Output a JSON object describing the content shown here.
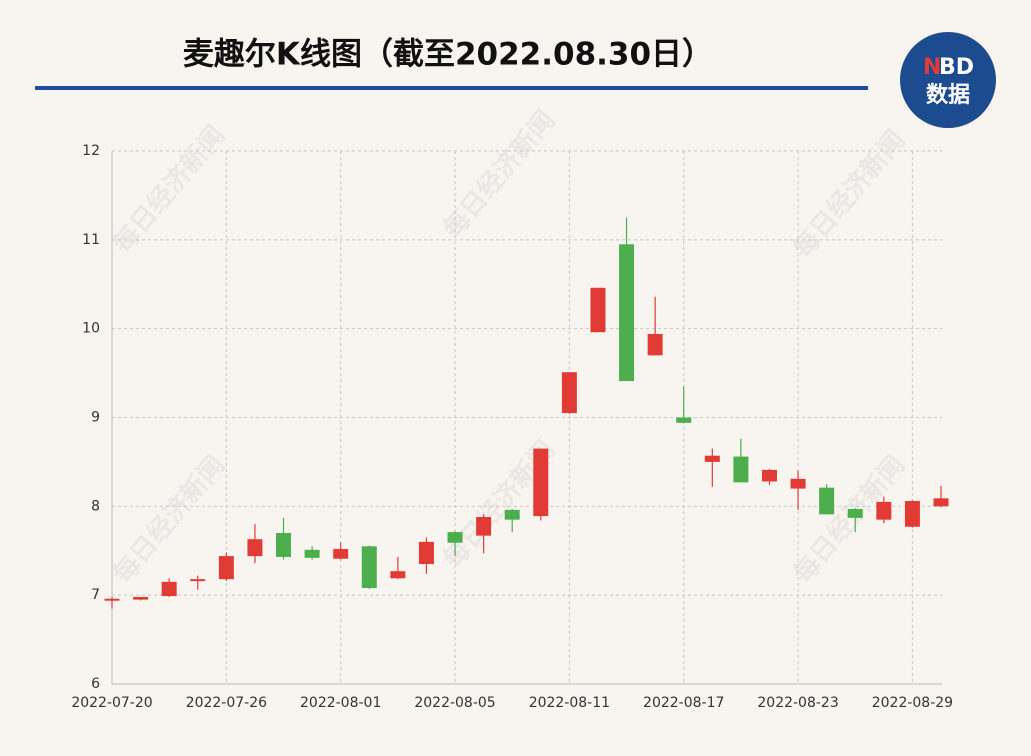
{
  "chart_data": {
    "type": "candlestick",
    "title": "麦趣尔K线图（截至2022.08.30日）",
    "logo": {
      "n": "N",
      "bd": "BD",
      "text": "数据"
    },
    "watermark": "每日经济新闻",
    "up_color": "#e03c35",
    "down_color": "#4cae4c",
    "grid": true,
    "categories": [
      "2022-07-20",
      null,
      null,
      null,
      "2022-07-26",
      null,
      null,
      null,
      "2022-08-01",
      null,
      null,
      null,
      "2022-08-05",
      null,
      null,
      null,
      "2022-08-11",
      null,
      null,
      null,
      "2022-08-17",
      null,
      null,
      null,
      "2022-08-23",
      null,
      null,
      null,
      "2022-08-29",
      null
    ],
    "open": [
      6.94,
      6.95,
      6.99,
      7.16,
      7.18,
      7.44,
      7.7,
      7.51,
      7.41,
      7.55,
      7.19,
      7.35,
      7.71,
      7.67,
      7.96,
      7.89,
      9.05,
      9.96,
      10.95,
      9.7,
      9.0,
      8.5,
      8.56,
      8.28,
      8.2,
      8.21,
      7.97,
      7.85,
      7.77,
      8.0
    ],
    "high": [
      6.98,
      6.98,
      7.19,
      7.22,
      7.48,
      7.8,
      7.87,
      7.55,
      7.59,
      7.56,
      7.43,
      7.65,
      7.72,
      7.91,
      7.97,
      8.65,
      9.51,
      10.46,
      11.25,
      10.36,
      9.35,
      8.65,
      8.76,
      8.42,
      8.4,
      8.25,
      7.98,
      8.11,
      8.07,
      8.23
    ],
    "low": [
      6.85,
      6.94,
      6.98,
      7.06,
      7.16,
      7.36,
      7.4,
      7.4,
      7.4,
      7.07,
      7.18,
      7.24,
      7.44,
      7.47,
      7.71,
      7.84,
      9.04,
      9.96,
      9.41,
      9.7,
      8.94,
      8.22,
      8.27,
      8.24,
      7.96,
      7.91,
      7.71,
      7.81,
      7.76,
      7.99
    ],
    "close": [
      6.96,
      6.98,
      7.15,
      7.18,
      7.44,
      7.63,
      7.43,
      7.42,
      7.52,
      7.08,
      7.27,
      7.6,
      7.59,
      7.88,
      7.85,
      8.65,
      9.51,
      10.46,
      9.41,
      9.94,
      8.94,
      8.57,
      8.27,
      8.41,
      8.31,
      7.91,
      7.87,
      8.05,
      8.06,
      8.09
    ],
    "ylim": [
      6,
      12
    ],
    "yticks": [
      6,
      7,
      8,
      9,
      10,
      11,
      12
    ]
  }
}
